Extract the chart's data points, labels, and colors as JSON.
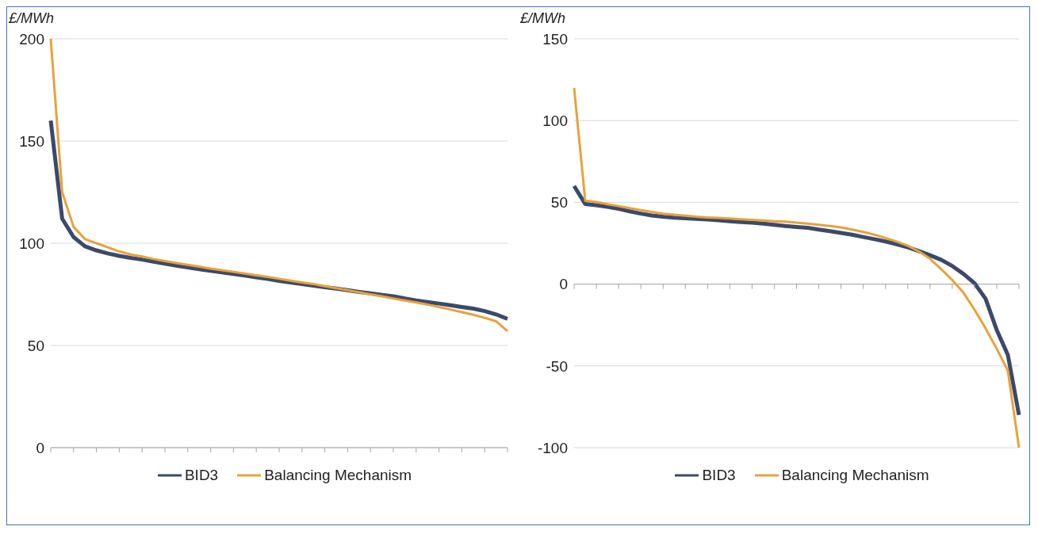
{
  "chart_data": [
    {
      "type": "line",
      "ylabel": "£/MWh",
      "categories": [
        null,
        null,
        null,
        null,
        null,
        null,
        null,
        null,
        null,
        null,
        null,
        null,
        null,
        null,
        null,
        null,
        null,
        null,
        null,
        null,
        null,
        null,
        null,
        null,
        null,
        null,
        null,
        null,
        null,
        null,
        null,
        null,
        null,
        null,
        null,
        null,
        null,
        null,
        null,
        null,
        null
      ],
      "ylim": [
        0,
        200
      ],
      "yticks": [
        0,
        50,
        100,
        150,
        200
      ],
      "grid": "y",
      "legend": "bottom",
      "tick_labels": "y",
      "series": [
        {
          "name": "BID3",
          "color": "#3b4a6b",
          "values": [
            160,
            112,
            103,
            98.5,
            96.5,
            95,
            93.8,
            92.8,
            92,
            91,
            90,
            89,
            88.2,
            87.3,
            86.5,
            85.7,
            85,
            84.2,
            83.3,
            82.5,
            81.6,
            80.8,
            80,
            79.3,
            78.5,
            77.8,
            77,
            76.2,
            75.5,
            74.7,
            74,
            73,
            72,
            71.2,
            70.5,
            69.7,
            68.8,
            68,
            66.8,
            65.2,
            63
          ]
        },
        {
          "name": "Balancing Mechanism",
          "color": "#e8a23a",
          "values": [
            200,
            125,
            108,
            102,
            100,
            98,
            96,
            94.5,
            93.5,
            92.3,
            91.3,
            90.3,
            89.4,
            88.6,
            87.6,
            86.8,
            86,
            85.2,
            84.3,
            83.5,
            82.6,
            81.7,
            80.8,
            80,
            79,
            78,
            77,
            76,
            75,
            74,
            73,
            72,
            71,
            70,
            68.8,
            67.6,
            66.3,
            65,
            63.5,
            61.8,
            57
          ]
        }
      ]
    },
    {
      "type": "line",
      "ylabel": "£/MWh",
      "categories": [
        null,
        null,
        null,
        null,
        null,
        null,
        null,
        null,
        null,
        null,
        null,
        null,
        null,
        null,
        null,
        null,
        null,
        null,
        null,
        null,
        null,
        null,
        null,
        null,
        null,
        null,
        null,
        null,
        null,
        null,
        null,
        null,
        null,
        null,
        null,
        null,
        null,
        null,
        null,
        null,
        null
      ],
      "ylim": [
        -100,
        150
      ],
      "yticks": [
        -100,
        -50,
        0,
        50,
        100,
        150
      ],
      "grid": "y",
      "legend": "bottom",
      "tick_labels": "y",
      "series": [
        {
          "name": "BID3",
          "color": "#3b4a6b",
          "values": [
            60,
            49,
            48.3,
            47.3,
            46,
            44.5,
            43.1,
            42,
            41.2,
            40.6,
            40.3,
            39.9,
            39.5,
            39.1,
            38.5,
            38,
            37.6,
            37,
            36.3,
            35.5,
            34.9,
            34.4,
            33.4,
            32.4,
            31.3,
            30.2,
            28.8,
            27.5,
            26.1,
            24.4,
            22.5,
            20.2,
            17.7,
            14.9,
            11.1,
            6.3,
            0.6,
            -9,
            -28,
            -43.3,
            -80
          ]
        },
        {
          "name": "Balancing Mechanism",
          "color": "#e8a23a",
          "values": [
            120,
            51,
            50.2,
            48.9,
            47.7,
            46.4,
            45.2,
            44.1,
            43.1,
            42.4,
            41.8,
            41.2,
            40.8,
            40.5,
            40.1,
            39.7,
            39.3,
            38.9,
            38.5,
            38.2,
            37.6,
            37,
            36.3,
            35.5,
            34.7,
            33.4,
            31.9,
            30.2,
            28.2,
            26,
            23.5,
            20,
            15.5,
            9.2,
            2.5,
            -5.2,
            -15.6,
            -27.1,
            -39.5,
            -52.9,
            -100
          ]
        }
      ]
    }
  ]
}
